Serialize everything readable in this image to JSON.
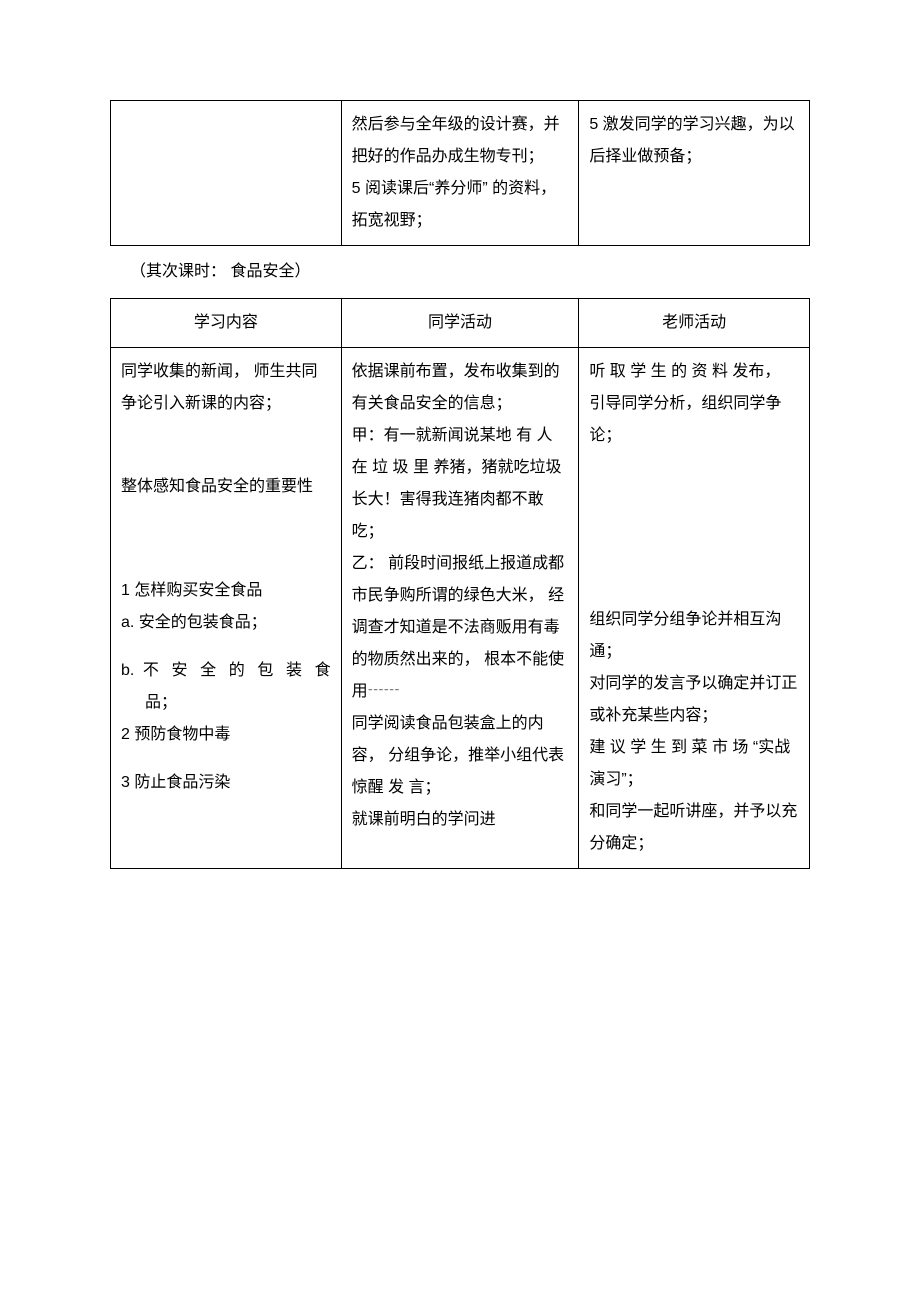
{
  "table1": {
    "row": {
      "col1": "",
      "col2": "然后参与全年级的设计赛，并把好的作品办成生物专刊；\n5 阅读课后“养分师” 的资料，拓宽视野；",
      "col3": "5  激发同学的学习兴趣，为以后择业做预备；"
    }
  },
  "subtitle": "（其次课时： 食品安全）",
  "table2": {
    "header": {
      "col1": "学习内容",
      "col2": "同学活动",
      "col3": "老师活动"
    },
    "body": {
      "col1_p1": "同学收集的新闻， 师生共同争论引入新课的内容；",
      "col1_p2": "整体感知食品安全的重要性",
      "col1_item1": "1 怎样购买安全食品",
      "col1_item1a": "a.  安全的包装食品；",
      "col1_item1b_line1": "b. 不 安 全 的 包 装 食",
      "col1_item1b_line2": "品；",
      "col1_item2": "2 预防食物中毒",
      "col1_item3": "3 防止食品污染",
      "col2_p1": "依据课前布置，发布收集到的有关食品安全的信息；",
      "col2_p2": "甲：有一就新闻说某地 有 人 在 垃 圾 里 养猪，猪就吃垃圾长大！害得我连猪肉都不敢 吃；",
      "col2_p3": "乙： 前段时间报纸上报道成都市民争购所谓的绿色大米， 经调查才知道是不法商贩用有毒的物质然出来的， 根本不能使用┄┄",
      "col2_p4": "同学阅读食品包装盒上的内容，  分组争论，推举小组代表惊醒 发 言；",
      "col2_p5": "就课前明白的学问进",
      "col3_p1": "听 取 学 生 的 资 料 发布， 引导同学分析，组织同学争论；",
      "col3_p2": "组织同学分组争论并相互沟通；",
      "col3_p3": "对同学的发言予以确定并订正或补充某些内容；",
      "col3_p4": "建 议 学 生 到 菜 市 场 “实战演习”；",
      "col3_p5": "和同学一起听讲座，并予以充分确定；"
    }
  }
}
